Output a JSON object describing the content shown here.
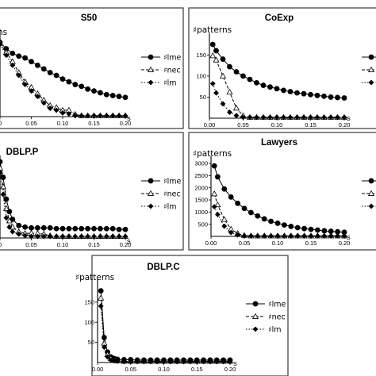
{
  "chart_data": [
    {
      "type": "line",
      "title": "S50",
      "ylabel": "♯patterns",
      "xlabel": "s",
      "x_ticks": [
        "0",
        "0.05",
        "0.10",
        "0.15",
        "0.20"
      ],
      "y_ticks": [],
      "xlim": [
        0,
        0.2
      ],
      "ylim": [
        0,
        180
      ],
      "x": [
        0,
        0.01,
        0.02,
        0.03,
        0.04,
        0.05,
        0.06,
        0.07,
        0.08,
        0.09,
        0.1,
        0.11,
        0.12,
        0.13,
        0.14,
        0.15,
        0.16,
        0.17,
        0.18,
        0.19,
        0.2
      ],
      "series": [
        {
          "name": "♯lme",
          "marker": "circle",
          "dash": "",
          "values": [
            162,
            148,
            138,
            132,
            128,
            120,
            112,
            104,
            96,
            90,
            82,
            76,
            70,
            66,
            60,
            56,
            52,
            48,
            46,
            44,
            42
          ]
        },
        {
          "name": "♯nec",
          "marker": "triangle",
          "dash": "4,2",
          "values": [
            160,
            140,
            120,
            96,
            76,
            64,
            50,
            36,
            24,
            20,
            14,
            14,
            5,
            2,
            2,
            2,
            2,
            2,
            2,
            2,
            2
          ]
        },
        {
          "name": "♯lm",
          "marker": "diamond",
          "dash": "1.5,2",
          "values": [
            158,
            134,
            112,
            90,
            70,
            56,
            44,
            30,
            18,
            14,
            8,
            6,
            2,
            2,
            2,
            2,
            2,
            2,
            2,
            2,
            2
          ]
        }
      ],
      "legend": "right"
    },
    {
      "type": "line",
      "title": "CoExp",
      "ylabel": "♯patterns",
      "xlabel": "s",
      "x_ticks": [
        "0.00",
        "0.05",
        "0.10",
        "0.15",
        "0.20"
      ],
      "y_ticks": [
        "50",
        "100",
        "150"
      ],
      "xlim": [
        0,
        0.2
      ],
      "ylim": [
        0,
        190
      ],
      "x": [
        0.005,
        0.01,
        0.02,
        0.03,
        0.04,
        0.05,
        0.06,
        0.07,
        0.08,
        0.09,
        0.1,
        0.11,
        0.12,
        0.13,
        0.14,
        0.15,
        0.16,
        0.17,
        0.18,
        0.19,
        0.2
      ],
      "series": [
        {
          "name": "♯lme",
          "marker": "circle",
          "dash": "",
          "values": [
            175,
            160,
            140,
            122,
            110,
            100,
            92,
            84,
            78,
            74,
            70,
            66,
            63,
            60,
            58,
            56,
            54,
            52,
            50,
            49,
            48
          ]
        },
        {
          "name": "♯nec",
          "marker": "triangle",
          "dash": "4,2",
          "values": [
            148,
            138,
            100,
            62,
            24,
            6,
            2,
            2,
            2,
            2,
            2,
            2,
            2,
            2,
            2,
            2,
            2,
            2,
            2,
            2,
            2
          ]
        },
        {
          "name": "♯lm",
          "marker": "diamond",
          "dash": "1.5,2",
          "values": [
            82,
            60,
            34,
            14,
            6,
            2,
            2,
            2,
            2,
            2,
            2,
            2,
            2,
            2,
            2,
            2,
            2,
            2,
            2,
            2,
            2
          ]
        }
      ],
      "legend": "right"
    },
    {
      "type": "line",
      "title": "DBLP.P",
      "ylabel": "",
      "xlabel": "s",
      "x_ticks": [
        "0",
        "0.05",
        "0.10",
        "0.15",
        "0.20"
      ],
      "y_ticks": [],
      "xlim": [
        0,
        0.2
      ],
      "ylim": [
        0,
        100
      ],
      "x": [
        0,
        0.005,
        0.01,
        0.015,
        0.02,
        0.03,
        0.04,
        0.05,
        0.06,
        0.07,
        0.08,
        0.09,
        0.1,
        0.11,
        0.12,
        0.13,
        0.14,
        0.15,
        0.16,
        0.17,
        0.18,
        0.19,
        0.2
      ],
      "series": [
        {
          "name": "♯lme",
          "marker": "circle",
          "dash": "",
          "values": [
            98,
            78,
            50,
            34,
            24,
            16,
            14,
            13,
            13,
            13,
            13,
            12,
            12,
            12,
            12,
            12,
            12,
            12,
            12,
            12,
            12,
            11,
            11
          ]
        },
        {
          "name": "♯nec",
          "marker": "triangle",
          "dash": "4,2",
          "values": [
            90,
            66,
            38,
            22,
            14,
            8,
            6,
            6,
            6,
            5,
            3,
            2,
            2,
            2,
            2,
            2,
            2,
            2,
            2,
            2,
            2,
            2,
            2
          ]
        },
        {
          "name": "♯lm",
          "marker": "diamond",
          "dash": "1.5,2",
          "values": [
            84,
            56,
            26,
            14,
            8,
            5,
            3,
            2,
            2,
            2,
            2,
            2,
            2,
            2,
            2,
            2,
            2,
            2,
            2,
            2,
            2,
            2,
            2
          ]
        }
      ],
      "legend": "right"
    },
    {
      "type": "line",
      "title": "Lawyers",
      "ylabel": "♯patterns",
      "xlabel": "s",
      "x_ticks": [
        "0.00",
        "0.05",
        "0.10",
        "0.15",
        "0.20"
      ],
      "y_ticks": [
        "500",
        "1000",
        "1500",
        "2000",
        "2500",
        "3000"
      ],
      "xlim": [
        0,
        0.2
      ],
      "ylim": [
        0,
        3100
      ],
      "x": [
        0.005,
        0.01,
        0.02,
        0.03,
        0.04,
        0.05,
        0.06,
        0.07,
        0.08,
        0.09,
        0.1,
        0.11,
        0.12,
        0.13,
        0.14,
        0.15,
        0.16,
        0.17,
        0.18,
        0.19,
        0.2
      ],
      "series": [
        {
          "name": "♯lme",
          "marker": "circle",
          "dash": "",
          "values": [
            2900,
            2450,
            1950,
            1620,
            1360,
            1150,
            980,
            840,
            720,
            620,
            540,
            470,
            410,
            360,
            320,
            290,
            260,
            230,
            210,
            190,
            170
          ]
        },
        {
          "name": "♯nec",
          "marker": "triangle",
          "dash": "4,2",
          "values": [
            1750,
            1300,
            700,
            300,
            120,
            40,
            20,
            20,
            20,
            20,
            20,
            20,
            20,
            20,
            20,
            20,
            20,
            20,
            20,
            20,
            20
          ]
        },
        {
          "name": "♯lm",
          "marker": "diamond",
          "dash": "1.5,2",
          "values": [
            1220,
            900,
            420,
            160,
            60,
            20,
            20,
            20,
            20,
            20,
            20,
            20,
            20,
            20,
            20,
            20,
            20,
            20,
            20,
            20,
            20
          ]
        }
      ],
      "legend": "right"
    },
    {
      "type": "line",
      "title": "DBLP.C",
      "ylabel": "♯patterns",
      "xlabel": "s",
      "x_ticks": [
        "0.00",
        "0.05",
        "0.10",
        "0.15",
        "0.20"
      ],
      "y_ticks": [
        "50",
        "100",
        "150"
      ],
      "xlim": [
        0,
        0.2
      ],
      "ylim": [
        0,
        195
      ],
      "x": [
        0.005,
        0.01,
        0.015,
        0.02,
        0.025,
        0.03,
        0.04,
        0.05,
        0.06,
        0.07,
        0.08,
        0.09,
        0.1,
        0.11,
        0.12,
        0.13,
        0.14,
        0.15,
        0.16,
        0.17,
        0.18,
        0.19,
        0.2
      ],
      "series": [
        {
          "name": "♯lme",
          "marker": "circle",
          "dash": "",
          "values": [
            178,
            62,
            26,
            14,
            10,
            8,
            7,
            7,
            6,
            6,
            6,
            6,
            6,
            6,
            6,
            6,
            6,
            6,
            6,
            6,
            6,
            6,
            6
          ]
        },
        {
          "name": "♯nec",
          "marker": "triangle",
          "dash": "4,2",
          "values": [
            160,
            48,
            20,
            10,
            6,
            4,
            3,
            3,
            3,
            3,
            3,
            3,
            3,
            3,
            3,
            3,
            3,
            3,
            3,
            3,
            3,
            3,
            3
          ]
        },
        {
          "name": "♯lm",
          "marker": "diamond",
          "dash": "1.5,2",
          "values": [
            140,
            38,
            14,
            6,
            4,
            3,
            2,
            2,
            2,
            2,
            2,
            2,
            2,
            2,
            2,
            2,
            2,
            2,
            2,
            2,
            2,
            2,
            2
          ]
        }
      ],
      "legend": "right"
    }
  ]
}
